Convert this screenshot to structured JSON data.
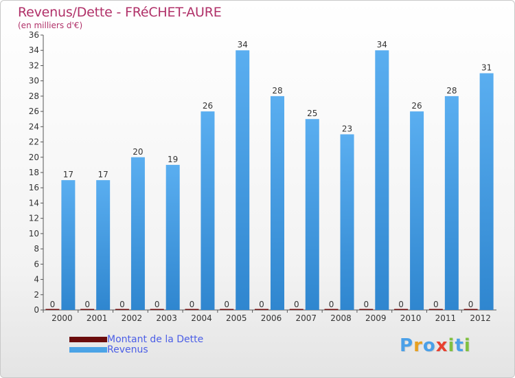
{
  "chart_data": {
    "type": "bar",
    "title": "Revenus/Dette - FRéCHET-AURE",
    "subtitle": "(en milliers d'€)",
    "categories": [
      "2000",
      "2001",
      "2002",
      "2003",
      "2004",
      "2005",
      "2006",
      "2007",
      "2008",
      "2009",
      "2010",
      "2011",
      "2012"
    ],
    "series": [
      {
        "name": "Montant de la Dette",
        "color": "#6b0c0c",
        "values": [
          0,
          0,
          0,
          0,
          0,
          0,
          0,
          0,
          0,
          0,
          0,
          0,
          0
        ]
      },
      {
        "name": "Revenus",
        "color": "#4ba3e6",
        "values": [
          17,
          17,
          20,
          19,
          26,
          34,
          28,
          25,
          23,
          34,
          26,
          28,
          31
        ]
      }
    ],
    "ylim": [
      0,
      36
    ],
    "ytick_step": 2,
    "xlabel": "",
    "ylabel": "",
    "grid": false,
    "legend_position": "bottom-left"
  },
  "legend": [
    {
      "label": "Montant de la Dette",
      "color": "#6b0c0c"
    },
    {
      "label": "Revenus",
      "color": "#4ba3e6"
    }
  ],
  "brand": {
    "letters": [
      "P",
      "r",
      "o",
      "x",
      "i",
      "t",
      "i"
    ],
    "colors": [
      "#4aa0e8",
      "#e8a020",
      "#4aa0e8",
      "#e84030",
      "#80c040",
      "#4aa0e8",
      "#80c040"
    ]
  }
}
